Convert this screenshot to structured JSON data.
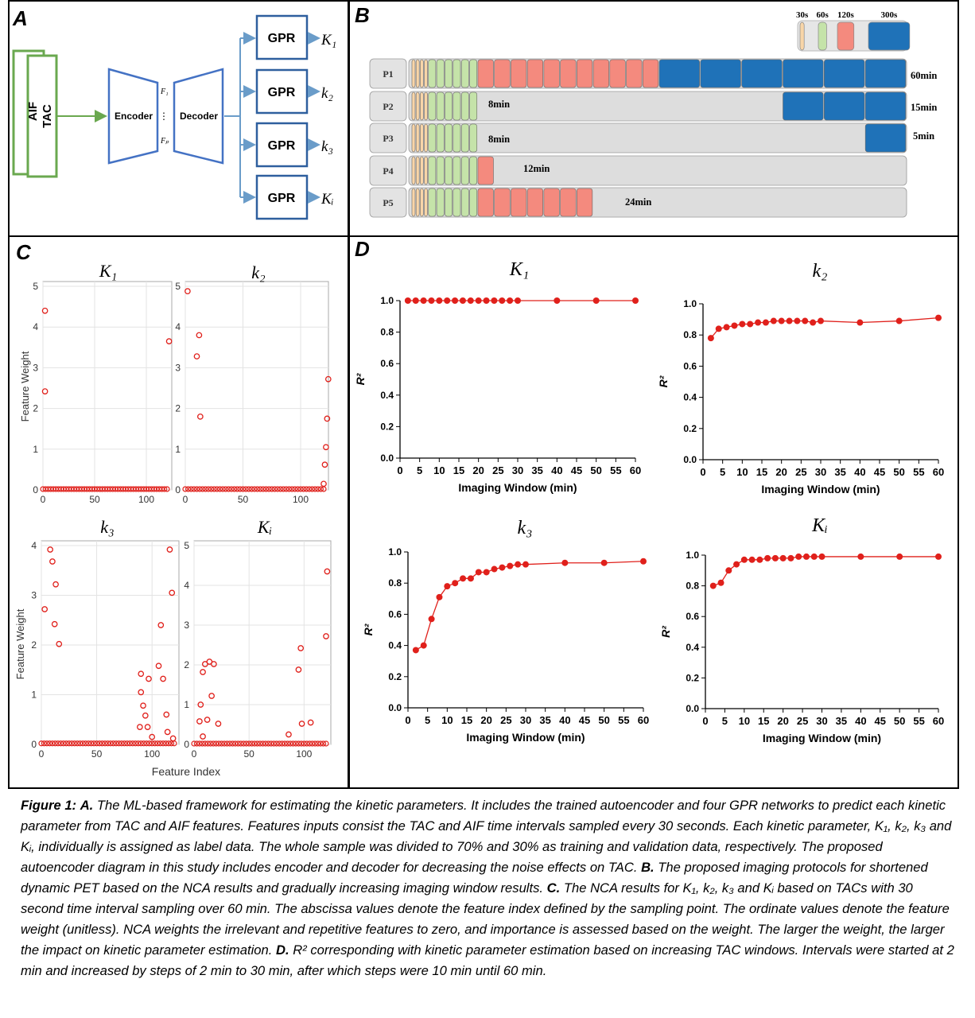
{
  "panels": {
    "a": "A",
    "b": "B",
    "c": "C",
    "d": "D"
  },
  "panel_a": {
    "inputs": [
      "AIF",
      "TAC"
    ],
    "encoder": "Encoder",
    "decoder": "Decoder",
    "latent_top": "F₁",
    "latent_bottom": "Fₚ",
    "gpr_label": "GPR",
    "outputs": [
      "K₁",
      "k₂",
      "k₃",
      "Kᵢ"
    ]
  },
  "panel_b": {
    "legend": [
      "30s",
      "60s",
      "120s",
      "300s"
    ],
    "protocols": [
      {
        "name": "P1",
        "label": "60min"
      },
      {
        "name": "P2",
        "label": "15min",
        "mid_label": "8min"
      },
      {
        "name": "P3",
        "label": "5min",
        "mid_label": "8min"
      },
      {
        "name": "P4",
        "mid_label": "12min"
      },
      {
        "name": "P5",
        "mid_label": "24min"
      }
    ],
    "colors": {
      "s30": "#f8d5a8",
      "s60": "#c5e3a9",
      "s120": "#f48a7e",
      "s300": "#1f72b8",
      "track": "#dddddd"
    }
  },
  "panel_c": {
    "xlabel": "Feature Index",
    "ylabel": "Feature Weight",
    "plots": [
      {
        "title": "K₁",
        "yticks": [
          "0",
          "1",
          "2",
          "3",
          "4",
          "5"
        ],
        "xticks": [
          "0",
          "50",
          "100"
        ]
      },
      {
        "title": "k₂",
        "yticks": [
          "0",
          "1",
          "2",
          "3",
          "4",
          "5"
        ],
        "xticks": [
          "0",
          "50",
          "100"
        ]
      },
      {
        "title": "k₃",
        "yticks": [
          "0",
          "1",
          "2",
          "3",
          "4"
        ],
        "xticks": [
          "0",
          "50",
          "100"
        ]
      },
      {
        "title": "Kᵢ",
        "yticks": [
          "0",
          "1",
          "2",
          "3",
          "4",
          "5"
        ],
        "xticks": [
          "0",
          "50",
          "100"
        ]
      }
    ]
  },
  "panel_d": {
    "xlabel": "Imaging Window (min)",
    "ylabel": "R²",
    "titles": [
      "K₁",
      "k₂",
      "k₃",
      "Kᵢ"
    ],
    "xticks": [
      "0",
      "5",
      "10",
      "15",
      "20",
      "25",
      "30",
      "35",
      "40",
      "45",
      "50",
      "55",
      "60"
    ],
    "yticks": [
      "0.0",
      "0.2",
      "0.4",
      "0.6",
      "0.8",
      "1.0"
    ]
  },
  "chart_data": [
    {
      "type": "scatter",
      "title": "K₁",
      "xlabel": "",
      "ylabel": "Feature Weight",
      "xlim": [
        0,
        120
      ],
      "ylim": [
        0,
        5
      ],
      "points": [
        [
          2,
          4.4
        ],
        [
          2,
          2.42
        ],
        [
          5,
          0.02
        ],
        [
          20,
          0.02
        ],
        [
          40,
          0.02
        ],
        [
          60,
          0.02
        ],
        [
          80,
          0.02
        ],
        [
          100,
          0.02
        ],
        [
          118,
          0.02
        ],
        [
          122,
          3.65
        ]
      ]
    },
    {
      "type": "scatter",
      "title": "k₂",
      "xlabel": "",
      "ylabel": "",
      "xlim": [
        0,
        120
      ],
      "ylim": [
        0,
        5
      ],
      "points": [
        [
          2,
          4.88
        ],
        [
          12,
          3.8
        ],
        [
          10,
          3.28
        ],
        [
          13,
          1.8
        ],
        [
          14,
          0.05
        ],
        [
          30,
          0.02
        ],
        [
          60,
          0.02
        ],
        [
          90,
          0.02
        ],
        [
          110,
          0.02
        ],
        [
          119,
          0.05
        ],
        [
          120,
          0.15
        ],
        [
          121,
          0.62
        ],
        [
          122,
          1.05
        ],
        [
          123,
          1.75
        ],
        [
          124,
          2.72
        ]
      ]
    },
    {
      "type": "scatter",
      "title": "k₃",
      "xlabel": "",
      "ylabel": "Feature Weight",
      "xlim": [
        0,
        120
      ],
      "ylim": [
        0,
        4
      ],
      "points": [
        [
          3,
          2.72
        ],
        [
          8,
          3.92
        ],
        [
          10,
          3.68
        ],
        [
          13,
          3.22
        ],
        [
          12,
          2.42
        ],
        [
          16,
          2.02
        ],
        [
          5,
          0.02
        ],
        [
          40,
          0.02
        ],
        [
          70,
          0.02
        ],
        [
          90,
          1.42
        ],
        [
          90,
          1.05
        ],
        [
          92,
          0.78
        ],
        [
          94,
          0.58
        ],
        [
          89,
          0.35
        ],
        [
          96,
          0.35
        ],
        [
          97,
          1.32
        ],
        [
          100,
          0.15
        ],
        [
          106,
          1.58
        ],
        [
          108,
          2.4
        ],
        [
          110,
          1.32
        ],
        [
          113,
          0.6
        ],
        [
          116,
          3.92
        ],
        [
          118,
          3.05
        ],
        [
          114,
          0.25
        ],
        [
          119,
          0.12
        ]
      ]
    },
    {
      "type": "scatter",
      "title": "Kᵢ",
      "xlabel": "Feature Index",
      "ylabel": "",
      "xlim": [
        0,
        120
      ],
      "ylim": [
        0,
        5
      ],
      "points": [
        [
          5,
          0.58
        ],
        [
          8,
          1.82
        ],
        [
          10,
          2.02
        ],
        [
          14,
          2.08
        ],
        [
          18,
          2.02
        ],
        [
          16,
          1.22
        ],
        [
          6,
          1.0
        ],
        [
          22,
          0.52
        ],
        [
          12,
          0.62
        ],
        [
          8,
          0.2
        ],
        [
          40,
          0.02
        ],
        [
          70,
          0.02
        ],
        [
          86,
          0.25
        ],
        [
          95,
          1.88
        ],
        [
          97,
          2.42
        ],
        [
          98,
          0.52
        ],
        [
          106,
          0.55
        ],
        [
          120,
          2.72
        ],
        [
          121,
          4.35
        ],
        [
          110,
          0.05
        ]
      ]
    },
    {
      "type": "line",
      "title": "K₁",
      "xlabel": "Imaging Window (min)",
      "ylabel": "R²",
      "xlim": [
        0,
        60
      ],
      "ylim": [
        0,
        1
      ],
      "x": [
        2,
        4,
        6,
        8,
        10,
        12,
        14,
        16,
        18,
        20,
        22,
        24,
        26,
        28,
        30,
        40,
        50,
        60
      ],
      "y": [
        1.0,
        1.0,
        1.0,
        1.0,
        1.0,
        1.0,
        1.0,
        1.0,
        1.0,
        1.0,
        1.0,
        1.0,
        1.0,
        1.0,
        1.0,
        1.0,
        1.0,
        1.0
      ]
    },
    {
      "type": "line",
      "title": "k₂",
      "xlabel": "Imaging Window (min)",
      "ylabel": "R²",
      "xlim": [
        0,
        60
      ],
      "ylim": [
        0,
        1
      ],
      "x": [
        2,
        4,
        6,
        8,
        10,
        12,
        14,
        16,
        18,
        20,
        22,
        24,
        26,
        28,
        30,
        40,
        50,
        60
      ],
      "y": [
        0.78,
        0.84,
        0.85,
        0.86,
        0.87,
        0.87,
        0.88,
        0.88,
        0.89,
        0.89,
        0.89,
        0.89,
        0.89,
        0.88,
        0.89,
        0.88,
        0.89,
        0.91
      ]
    },
    {
      "type": "line",
      "title": "k₃",
      "xlabel": "Imaging Window (min)",
      "ylabel": "R²",
      "xlim": [
        0,
        60
      ],
      "ylim": [
        0,
        1
      ],
      "x": [
        2,
        4,
        6,
        8,
        10,
        12,
        14,
        16,
        18,
        20,
        22,
        24,
        26,
        28,
        30,
        40,
        50,
        60
      ],
      "y": [
        0.37,
        0.4,
        0.57,
        0.71,
        0.78,
        0.8,
        0.83,
        0.83,
        0.87,
        0.87,
        0.89,
        0.9,
        0.91,
        0.92,
        0.92,
        0.93,
        0.93,
        0.94
      ]
    },
    {
      "type": "line",
      "title": "Kᵢ",
      "xlabel": "Imaging Window (min)",
      "ylabel": "R²",
      "xlim": [
        0,
        60
      ],
      "ylim": [
        0,
        1
      ],
      "x": [
        2,
        4,
        6,
        8,
        10,
        12,
        14,
        16,
        18,
        20,
        22,
        24,
        26,
        28,
        30,
        40,
        50,
        60
      ],
      "y": [
        0.8,
        0.82,
        0.9,
        0.94,
        0.97,
        0.97,
        0.97,
        0.98,
        0.98,
        0.98,
        0.98,
        0.99,
        0.99,
        0.99,
        0.99,
        0.99,
        0.99,
        0.99
      ]
    }
  ],
  "caption": {
    "fig": "Figure 1:",
    "a_label": "A.",
    "a_text": "The ML-based framework for estimating the kinetic parameters. It includes the trained autoencoder and four GPR networks to predict each kinetic parameter from TAC and AIF features. Features inputs consist the TAC and AIF time intervals sampled every 30 seconds. Each kinetic parameter, K₁, k₂, k₃ and Kᵢ, individually is assigned as label data. The whole sample was divided to 70% and 30% as training and validation data, respectively. The proposed autoencoder diagram in this study includes encoder and decoder for decreasing the noise effects on TAC.",
    "b_label": "B.",
    "b_text": "The proposed imaging protocols for shortened dynamic PET based on the NCA results and gradually increasing imaging window results.",
    "c_label": "C.",
    "c_text": "The NCA results for K₁, k₂, k₃ and Kᵢ based on TACs with 30 second time interval sampling over 60 min. The abscissa values denote the feature index defined by the sampling point. The ordinate values denote the feature weight (unitless). NCA weights the irrelevant and repetitive features to zero, and importance is assessed based on the weight. The larger the weight, the larger the impact on kinetic parameter estimation.",
    "d_label": "D.",
    "d_text": "R² corresponding with kinetic parameter estimation based on increasing TAC windows. Intervals were started at 2 min and increased by steps of 2 min to 30 min, after which steps were 10 min until 60 min."
  }
}
